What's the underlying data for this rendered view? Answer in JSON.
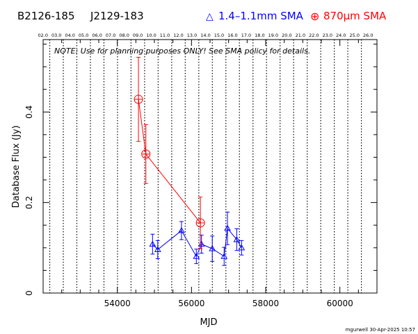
{
  "header": {
    "source_name": "B2126-185",
    "alt_name": "J2129-183",
    "legend_blue_marker": "△",
    "legend_blue": "1.4–1.1mm SMA",
    "legend_red_marker": "⊕",
    "legend_red": "870μm SMA"
  },
  "note": "NOTE: Use for planning purposes ONLY!  See SMA policy for details.",
  "footer": "mgurwell 30-Apr-2025 10:57",
  "colors": {
    "blue": "#0000ff",
    "red": "#ff0000",
    "axis": "#000000",
    "grid": "#000000"
  },
  "chart_data": {
    "type": "scatter",
    "xlabel": "MJD",
    "ylabel": "Database Flux (Jy)",
    "xlim": [
      52000,
      61000
    ],
    "ylim": [
      0,
      0.56
    ],
    "x_ticks": [
      54000,
      56000,
      58000,
      60000
    ],
    "y_ticks": [
      0,
      0.2,
      0.4
    ],
    "y_tick_labels": [
      "0",
      "0.2",
      "0.4"
    ],
    "top_axis_labels": [
      "02.0",
      "03.0",
      "04.0",
      "05.0",
      "06.0",
      "07.0",
      "08.0",
      "09.0",
      "10.0",
      "11.0",
      "12.0",
      "13.0",
      "14.0",
      "15.0",
      "16.0",
      "17.0",
      "18.0",
      "19.0",
      "20.0",
      "21.0",
      "22.0",
      "23.0",
      "24.0",
      "25.0",
      "26.0"
    ],
    "vertical_dotted_lines_mjd": [
      52179,
      52544,
      52909,
      53275,
      53640,
      54005,
      54370,
      54736,
      55101,
      55466,
      55831,
      56197,
      56562,
      56927,
      57292,
      57658,
      58023,
      58388,
      58753,
      59119,
      59484,
      59849,
      60214,
      60580
    ],
    "series": [
      {
        "name": "1.4–1.1mm SMA",
        "marker": "triangle",
        "color": "#0000ff",
        "points": [
          {
            "x": 54950,
            "y": 0.108,
            "err": 0.022
          },
          {
            "x": 55090,
            "y": 0.096,
            "err": 0.02
          },
          {
            "x": 55730,
            "y": 0.138,
            "err": 0.02
          },
          {
            "x": 56130,
            "y": 0.081,
            "err": 0.016
          },
          {
            "x": 56270,
            "y": 0.108,
            "err": 0.02
          },
          {
            "x": 56560,
            "y": 0.098,
            "err": 0.028
          },
          {
            "x": 56880,
            "y": 0.081,
            "err": 0.02
          },
          {
            "x": 56970,
            "y": 0.143,
            "err": 0.036
          },
          {
            "x": 57220,
            "y": 0.118,
            "err": 0.024
          },
          {
            "x": 57350,
            "y": 0.1,
            "err": 0.016
          }
        ]
      },
      {
        "name": "870μm SMA",
        "marker": "circle-plus",
        "color": "#ff0000",
        "points": [
          {
            "x": 54570,
            "y": 0.428,
            "err": 0.093
          },
          {
            "x": 54770,
            "y": 0.307,
            "err": 0.065
          },
          {
            "x": 56240,
            "y": 0.155,
            "err": 0.057
          }
        ]
      }
    ]
  }
}
